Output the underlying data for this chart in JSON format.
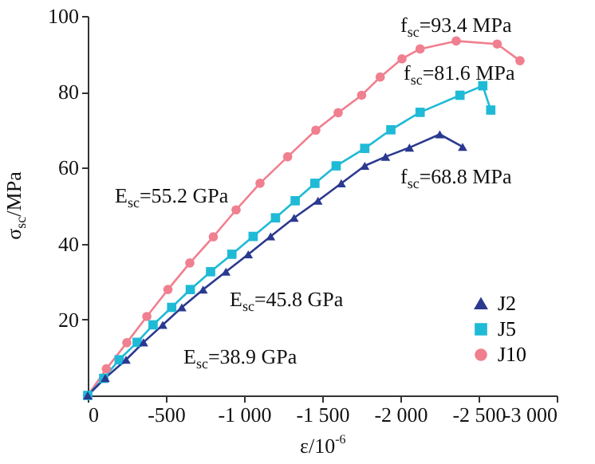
{
  "chart_data": {
    "type": "line",
    "xlabel": "ε/10$^{-6}$",
    "ylabel": "σ$_{sc}$/MPa",
    "xlim": [
      0,
      -3000
    ],
    "xticks": [
      0,
      -500,
      {
        "value": -1000,
        "label": "-1 000"
      },
      {
        "value": -1500,
        "label": "-1 500"
      },
      {
        "value": -2000,
        "label": "-2 000"
      },
      {
        "value": -2500,
        "label": "-2 500"
      },
      {
        "value": -3000,
        "label": "-3 000"
      }
    ],
    "ylim": [
      0,
      100
    ],
    "yticks": [
      20,
      40,
      60,
      80,
      100
    ],
    "grid": false,
    "legend": "bottom right",
    "line_style": "solid",
    "series": [
      {
        "name": "J2",
        "color": "#2b3990",
        "marker": "triangle",
        "x": [
          0,
          -112,
          -245,
          -357,
          -480,
          -602,
          -738,
          -884,
          -1027,
          -1170,
          -1320,
          -1473,
          -1622,
          -1772,
          -1905,
          -2058,
          -2252,
          -2398
        ],
        "values": [
          0,
          4.6,
          9.4,
          14.0,
          18.6,
          23.2,
          27.9,
          32.6,
          37.2,
          41.9,
          46.8,
          51.3,
          55.9,
          60.5,
          62.9,
          65.3,
          68.8,
          65.5
        ]
      },
      {
        "name": "J5",
        "color": "#1fbad6",
        "marker": "square",
        "x": [
          0,
          -102,
          -201,
          -316,
          -418,
          -537,
          -656,
          -786,
          -922,
          -1058,
          -1201,
          -1327,
          -1453,
          -1589,
          -1772,
          -1939,
          -2126,
          -2381,
          -2527,
          -2578
        ],
        "values": [
          0,
          4.5,
          9.4,
          14.0,
          18.6,
          23.2,
          27.9,
          32.6,
          37.2,
          41.9,
          46.8,
          51.3,
          55.9,
          60.5,
          65.1,
          70.0,
          74.6,
          79.1,
          81.6,
          75.2
        ]
      },
      {
        "name": "J10",
        "color": "#f07f8f",
        "marker": "circle",
        "x": [
          0,
          -119,
          -250,
          -378,
          -513,
          -653,
          -803,
          -949,
          -1102,
          -1279,
          -1459,
          -1602,
          -1752,
          -1871,
          -2010,
          -2126,
          -2357,
          -2619,
          -2765
        ],
        "values": [
          0,
          7.0,
          13.9,
          20.8,
          27.9,
          34.9,
          41.8,
          48.9,
          55.9,
          62.9,
          69.9,
          74.5,
          79.1,
          83.9,
          88.7,
          91.3,
          93.4,
          92.6,
          88.2
        ]
      }
    ],
    "annotations": [
      "E$_{sc}$=55.2 GPa",
      "E$_{sc}$=45.8 GPa",
      "E$_{sc}$=38.9 GPa",
      "f$_{sc}$=93.4 MPa",
      "f$_{sc}$=81.6 MPa",
      "f$_{sc}$=68.8 MPa"
    ]
  }
}
